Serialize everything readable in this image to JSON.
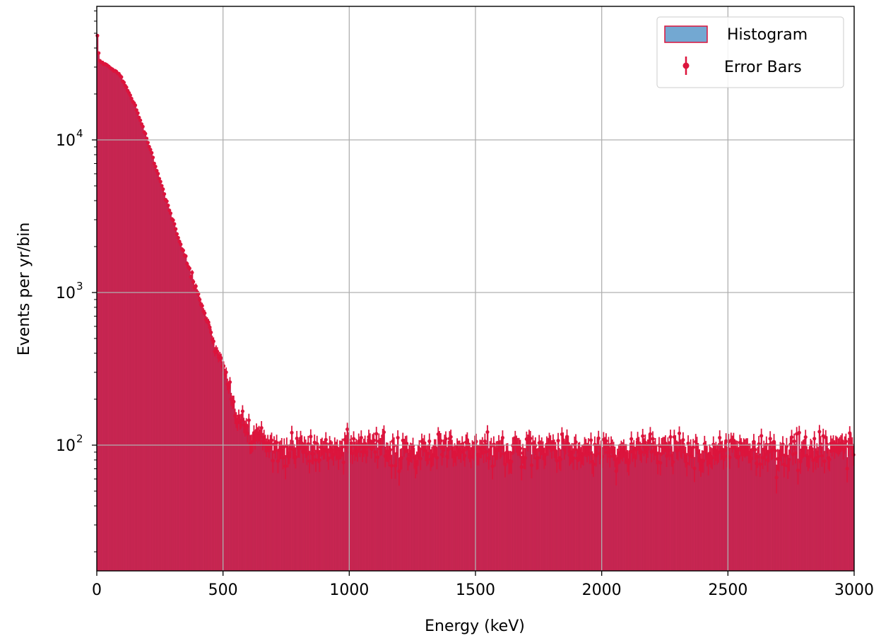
{
  "chart_data": {
    "type": "bar",
    "xlabel": "Energy (keV)",
    "ylabel": "Events per yr/bin",
    "xlim": [
      0,
      3000
    ],
    "ylim": [
      15,
      75000
    ],
    "y_scale": "log",
    "grid": true,
    "legend_position": "top-right",
    "x_ticks": [
      {
        "value": 0,
        "label": "0"
      },
      {
        "value": 500,
        "label": "500"
      },
      {
        "value": 1000,
        "label": "1000"
      },
      {
        "value": 1500,
        "label": "1500"
      },
      {
        "value": 2000,
        "label": "2000"
      },
      {
        "value": 2500,
        "label": "2500"
      },
      {
        "value": 3000,
        "label": "3000"
      }
    ],
    "y_ticks": [
      {
        "value": 100,
        "base": "10",
        "exp": "2"
      },
      {
        "value": 1000,
        "base": "10",
        "exp": "3"
      },
      {
        "value": 10000,
        "base": "10",
        "exp": "4"
      }
    ],
    "bin_width_keV": 5,
    "colors": {
      "bar_fill": "#c2264f",
      "bar_edge": "#d8245a",
      "errorbar": "#dc143c",
      "legend_patch_fill": "#73a8d2",
      "legend_patch_edge": "#dc143c",
      "grid": "#b0b0b0"
    },
    "spectrum_model": {
      "description_points": [
        {
          "energy": 2.5,
          "counts": 48000
        },
        {
          "energy": 10,
          "counts": 33000
        },
        {
          "energy": 50,
          "counts": 30000
        },
        {
          "energy": 90,
          "counts": 27000
        },
        {
          "energy": 150,
          "counts": 17000
        },
        {
          "energy": 200,
          "counts": 10000
        },
        {
          "energy": 250,
          "counts": 5500
        },
        {
          "energy": 300,
          "counts": 3000
        },
        {
          "energy": 350,
          "counts": 1700
        },
        {
          "energy": 400,
          "counts": 1000
        },
        {
          "energy": 450,
          "counts": 550
        },
        {
          "energy": 500,
          "counts": 330
        },
        {
          "energy": 550,
          "counts": 170
        },
        {
          "energy": 600,
          "counts": 120
        },
        {
          "energy": 700,
          "counts": 95
        },
        {
          "energy": 3000,
          "counts": 95
        }
      ]
    },
    "series": [
      {
        "name": "Histogram"
      },
      {
        "name": "Error Bars"
      }
    ]
  }
}
